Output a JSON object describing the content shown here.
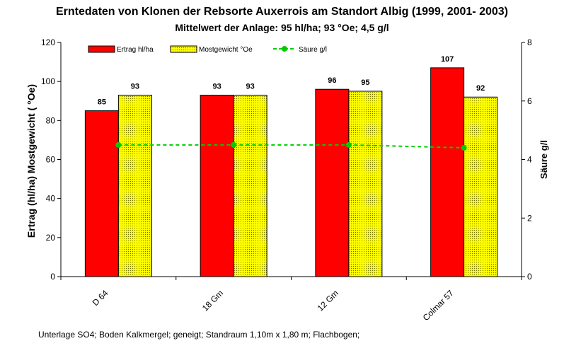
{
  "chart_data": {
    "type": "bar",
    "title": "Erntedaten von Klonen der Rebsorte  Auxerrois am Standort Albig (1999, 2001- 2003)",
    "subtitle": "Mittelwert der Anlage: 95 hl/ha; 93 °Oe; 4,5 g/l",
    "ylabel": "Ertrag (hl/ha)  Mostgewicht ( °Oe)",
    "y2label": "Säure g/l",
    "ylim": [
      0,
      120
    ],
    "y2lim": [
      0,
      8
    ],
    "yticks": [
      "0",
      "20",
      "40",
      "60",
      "80",
      "100",
      "120"
    ],
    "y2ticks": [
      "0",
      "2",
      "4",
      "6",
      "8"
    ],
    "categories": [
      "D 64",
      "18 Gm",
      "12 Gm",
      "Colmar 57"
    ],
    "series": [
      {
        "name": "Ertrag hl/ha",
        "type": "bar",
        "axis": "left",
        "values": [
          85,
          93,
          96,
          107
        ],
        "labels": [
          "85",
          "93",
          "96",
          "107"
        ],
        "color": "#ff0000"
      },
      {
        "name": "Mostgewicht °Oe",
        "type": "bar",
        "axis": "left",
        "values": [
          93,
          93,
          95,
          92
        ],
        "labels": [
          "93",
          "93",
          "95",
          "92"
        ],
        "color": "#ffff00"
      },
      {
        "name": "Säure g/l",
        "type": "line",
        "axis": "right",
        "values": [
          4.5,
          4.5,
          4.5,
          4.4
        ],
        "color": "#00cc00"
      }
    ],
    "legend_position": "top",
    "grid": false
  },
  "footnote": "Unterlage SO4;  Boden Kalkmergel;  geneigt; Standraum 1,10m x 1,80 m; Flachbogen;"
}
